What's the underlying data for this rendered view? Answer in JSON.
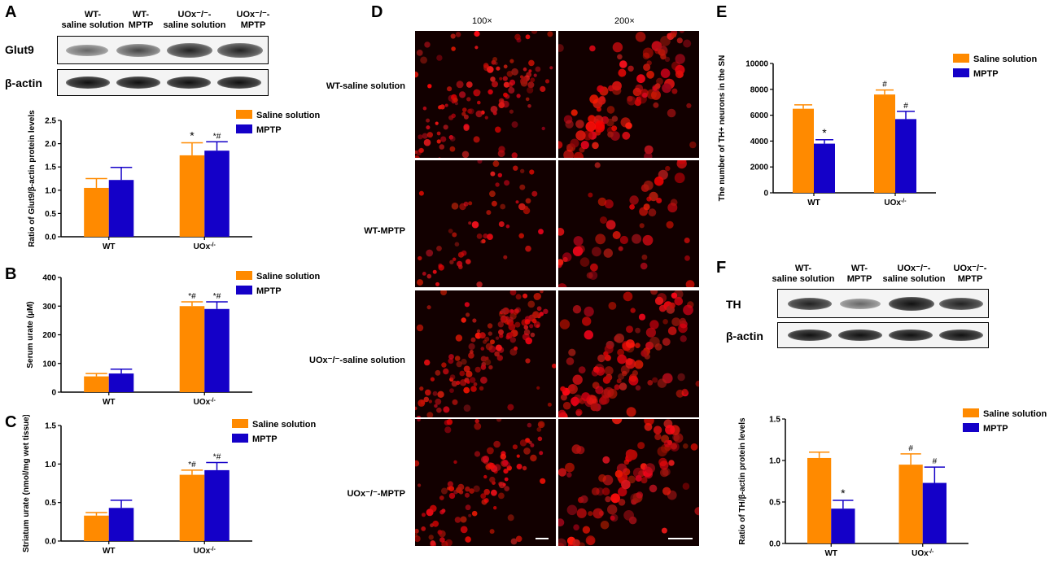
{
  "colors": {
    "saline": "#ff8a00",
    "mptp": "#1400c8"
  },
  "panel_a": {
    "letter": "A",
    "blot": {
      "lanes": [
        "WT-\nsaline solution",
        "WT-\nMPTP",
        "UOx⁻/⁻-\nsaline solution",
        "UOx⁻/⁻-\nMPTP"
      ],
      "rows": [
        "Glut9",
        "β-actin"
      ]
    }
  },
  "panel_b": {
    "letter": "B"
  },
  "panel_c": {
    "letter": "C"
  },
  "panel_d": {
    "letter": "D",
    "columns": [
      "100×",
      "200×"
    ],
    "rows": [
      "WT-saline solution",
      "WT-MPTP",
      "UOx⁻/⁻-saline solution",
      "UOx⁻/⁻-MPTP"
    ]
  },
  "panel_e": {
    "letter": "E"
  },
  "panel_f": {
    "letter": "F",
    "blot": {
      "lanes": [
        "WT-\nsaline solution",
        "WT-\nMPTP",
        "UOx⁻/⁻-\nsaline solution",
        "UOx⁻/⁻-\nMPTP"
      ],
      "rows": [
        "TH",
        "β-actin"
      ]
    }
  },
  "chart_data": [
    {
      "id": "A",
      "type": "bar",
      "categories": [
        "WT",
        "UOx-/-"
      ],
      "ylabel": "Ratio of Glut9/β-actin protein levels",
      "ylim": [
        0,
        2.5
      ],
      "yticks": [
        "0.0",
        "0.5",
        "1.0",
        "1.5",
        "2.0",
        "2.5"
      ],
      "series": [
        {
          "name": "Saline solution",
          "values": [
            1.05,
            1.75
          ],
          "errors": [
            0.2,
            0.27
          ],
          "marks": [
            "",
            "*"
          ]
        },
        {
          "name": "MPTP",
          "values": [
            1.22,
            1.85
          ],
          "errors": [
            0.27,
            0.19
          ],
          "marks": [
            "",
            "*#"
          ]
        }
      ],
      "legend": "top-right"
    },
    {
      "id": "B",
      "type": "bar",
      "categories": [
        "WT",
        "UOx-/-"
      ],
      "ylabel": "Serum urate (μM)",
      "ylim": [
        0,
        400
      ],
      "yticks": [
        "0",
        "100",
        "200",
        "300",
        "400"
      ],
      "series": [
        {
          "name": "Saline solution",
          "values": [
            55,
            300
          ],
          "errors": [
            10,
            15
          ],
          "marks": [
            "",
            "*#"
          ]
        },
        {
          "name": "MPTP",
          "values": [
            65,
            290
          ],
          "errors": [
            15,
            25
          ],
          "marks": [
            "",
            "*#"
          ]
        }
      ],
      "legend": "top-right"
    },
    {
      "id": "C",
      "type": "bar",
      "categories": [
        "WT",
        "UOx-/-"
      ],
      "ylabel": "Striatum urate (nmol/mg wet tissue)",
      "ylim": [
        0,
        1.5
      ],
      "yticks": [
        "0.0",
        "0.5",
        "1.0",
        "1.5"
      ],
      "series": [
        {
          "name": "Saline solution",
          "values": [
            0.33,
            0.86
          ],
          "errors": [
            0.04,
            0.06
          ],
          "marks": [
            "",
            "*#"
          ]
        },
        {
          "name": "MPTP",
          "values": [
            0.43,
            0.92
          ],
          "errors": [
            0.1,
            0.1
          ],
          "marks": [
            "",
            "*#"
          ]
        }
      ],
      "legend": "top-right"
    },
    {
      "id": "E",
      "type": "bar",
      "categories": [
        "WT",
        "UOx-/-"
      ],
      "ylabel": "The number of TH+ neurons in the SN",
      "ylim": [
        0,
        10000
      ],
      "yticks": [
        "0",
        "2000",
        "4000",
        "6000",
        "8000",
        "10000"
      ],
      "series": [
        {
          "name": "Saline solution",
          "values": [
            6500,
            7600
          ],
          "errors": [
            300,
            350
          ],
          "marks": [
            "",
            "#"
          ]
        },
        {
          "name": "MPTP",
          "values": [
            3800,
            5700
          ],
          "errors": [
            300,
            600
          ],
          "marks": [
            "*",
            "#"
          ]
        }
      ],
      "legend": "top-right"
    },
    {
      "id": "F",
      "type": "bar",
      "categories": [
        "WT",
        "UOx-/-"
      ],
      "ylabel": "Ratio of TH/β-actin protein levels",
      "ylim": [
        0,
        1.5
      ],
      "yticks": [
        "0.0",
        "0.5",
        "1.0",
        "1.5"
      ],
      "series": [
        {
          "name": "Saline solution",
          "values": [
            1.03,
            0.95
          ],
          "errors": [
            0.07,
            0.13
          ],
          "marks": [
            "",
            "#"
          ]
        },
        {
          "name": "MPTP",
          "values": [
            0.42,
            0.73
          ],
          "errors": [
            0.1,
            0.19
          ],
          "marks": [
            "*",
            "#"
          ]
        }
      ],
      "legend": "top-right"
    }
  ]
}
